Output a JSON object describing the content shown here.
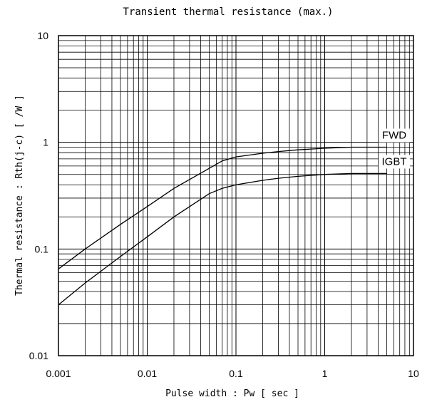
{
  "chart_data": {
    "type": "line",
    "title": "Transient thermal resistance (max.)",
    "xlabel": "Pulse width : Pw [ sec ]",
    "ylabel": "Thermal resistance : Rth(j-c) [  /W ]",
    "xscale": "log",
    "yscale": "log",
    "xlim": [
      0.001,
      10
    ],
    "ylim": [
      0.01,
      10
    ],
    "x_ticks": [
      "0.001",
      "0.01",
      "0.1",
      "1",
      "10"
    ],
    "y_ticks": [
      "0.01",
      "0.1",
      "1",
      "10"
    ],
    "grid": true,
    "series": [
      {
        "name": "FWD",
        "x": [
          0.001,
          0.002,
          0.005,
          0.01,
          0.02,
          0.05,
          0.07,
          0.1,
          0.2,
          0.3,
          0.5,
          1,
          2,
          5
        ],
        "y": [
          0.065,
          0.1,
          0.17,
          0.25,
          0.37,
          0.57,
          0.67,
          0.73,
          0.79,
          0.82,
          0.85,
          0.88,
          0.9,
          0.9
        ]
      },
      {
        "name": "IGBT",
        "x": [
          0.001,
          0.002,
          0.005,
          0.01,
          0.02,
          0.05,
          0.07,
          0.1,
          0.2,
          0.3,
          0.5,
          1,
          2,
          5
        ],
        "y": [
          0.03,
          0.048,
          0.085,
          0.13,
          0.2,
          0.33,
          0.37,
          0.4,
          0.44,
          0.46,
          0.48,
          0.5,
          0.51,
          0.51
        ]
      }
    ]
  }
}
